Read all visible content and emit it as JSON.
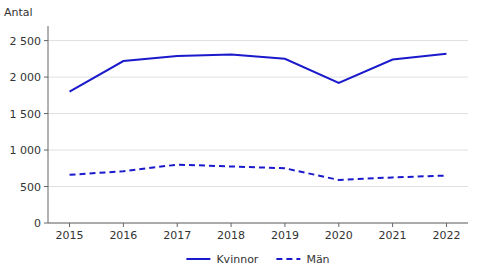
{
  "chart_data": {
    "type": "line",
    "ylabel": "Antal",
    "x": [
      2015,
      2016,
      2017,
      2018,
      2019,
      2020,
      2021,
      2022
    ],
    "xlim": [
      2014.6,
      2022.4
    ],
    "xticks": [
      2015,
      2016,
      2017,
      2018,
      2019,
      2020,
      2021,
      2022
    ],
    "ylim": [
      0,
      2700
    ],
    "yticks": [
      0,
      500,
      {
        "value": 1000,
        "label": "1 000"
      },
      {
        "value": 1500,
        "label": "1 500"
      },
      {
        "value": 2000,
        "label": "2 000"
      },
      {
        "value": 2500,
        "label": "2 500"
      }
    ],
    "grid": true,
    "legend": "bottom",
    "series": [
      {
        "name": "Kvinnor",
        "color": "#1a1acc",
        "line_style": "solid",
        "values": [
          1800,
          2220,
          2290,
          2310,
          2250,
          1920,
          2240,
          2320
        ]
      },
      {
        "name": "Män",
        "color": "#1a1acc",
        "line_style": "dashed",
        "values": [
          660,
          710,
          800,
          775,
          750,
          590,
          625,
          650
        ]
      }
    ]
  }
}
